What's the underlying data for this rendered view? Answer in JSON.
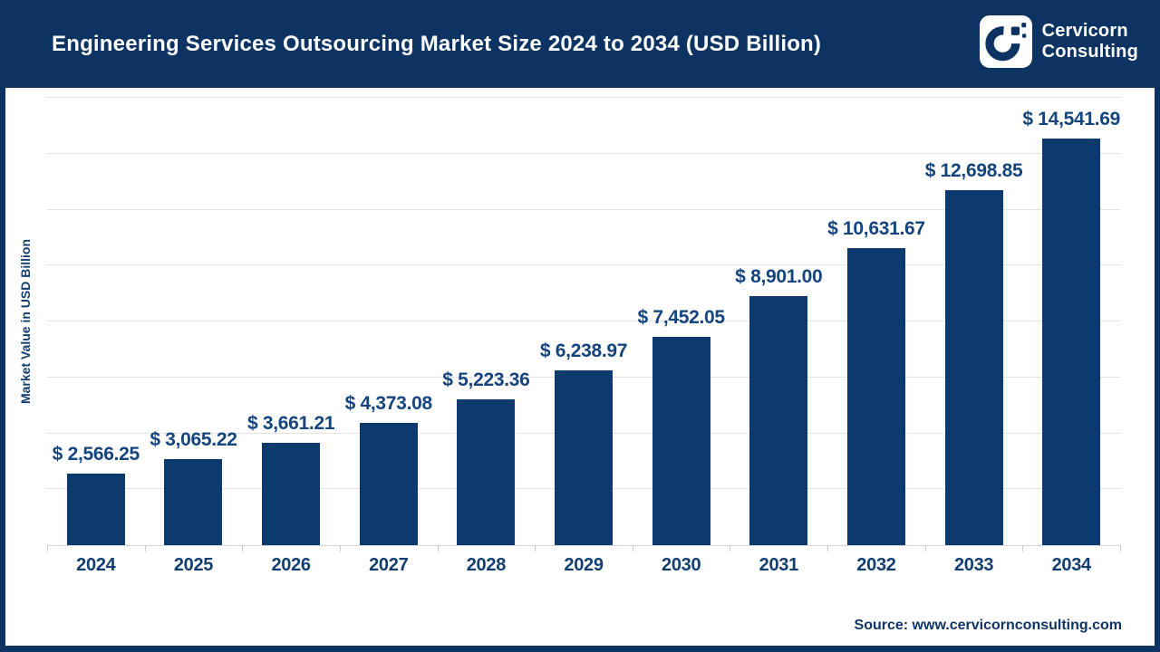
{
  "header": {
    "title": "Engineering Services Outsourcing Market Size 2024 to 2034 (USD Billion)",
    "brand": {
      "line1": "Cervicorn",
      "line2": "Consulting"
    }
  },
  "chart_data": {
    "type": "bar",
    "title": "Engineering Services Outsourcing Market Size 2024 to 2034 (USD Billion)",
    "categories": [
      "2024",
      "2025",
      "2026",
      "2027",
      "2028",
      "2029",
      "2030",
      "2031",
      "2032",
      "2033",
      "2034"
    ],
    "values": [
      2566.25,
      3065.22,
      3661.21,
      4373.08,
      5223.36,
      6238.97,
      7452.05,
      8901.0,
      10631.67,
      12698.85,
      14541.69
    ],
    "value_labels": [
      "$ 2,566.25",
      "$ 3,065.22",
      "$ 3,661.21",
      "$ 4,373.08",
      "$ 5,223.36",
      "$ 6,238.97",
      "$ 7,452.05",
      "$ 8,901.00",
      "$ 10,631.67",
      "$ 12,698.85",
      "$ 14,541.69"
    ],
    "xlabel": "",
    "ylabel": "Market Value in USD Billion",
    "ylim": [
      0,
      16000
    ],
    "gridline_interval": 2000,
    "grid": true,
    "legend_position": "none",
    "y_tick_labels_visible": false
  },
  "footer": {
    "source": "Source: www.cervicornconsulting.com"
  },
  "colors": {
    "navy_header": "#0c3361",
    "bar_fill": "#0d3a6e",
    "value_label_text": "#15457e",
    "axis_label_text": "#123e70",
    "gridline": "#e4e4e4",
    "axis_line": "#d6d6d6",
    "background": "#ffffff"
  }
}
